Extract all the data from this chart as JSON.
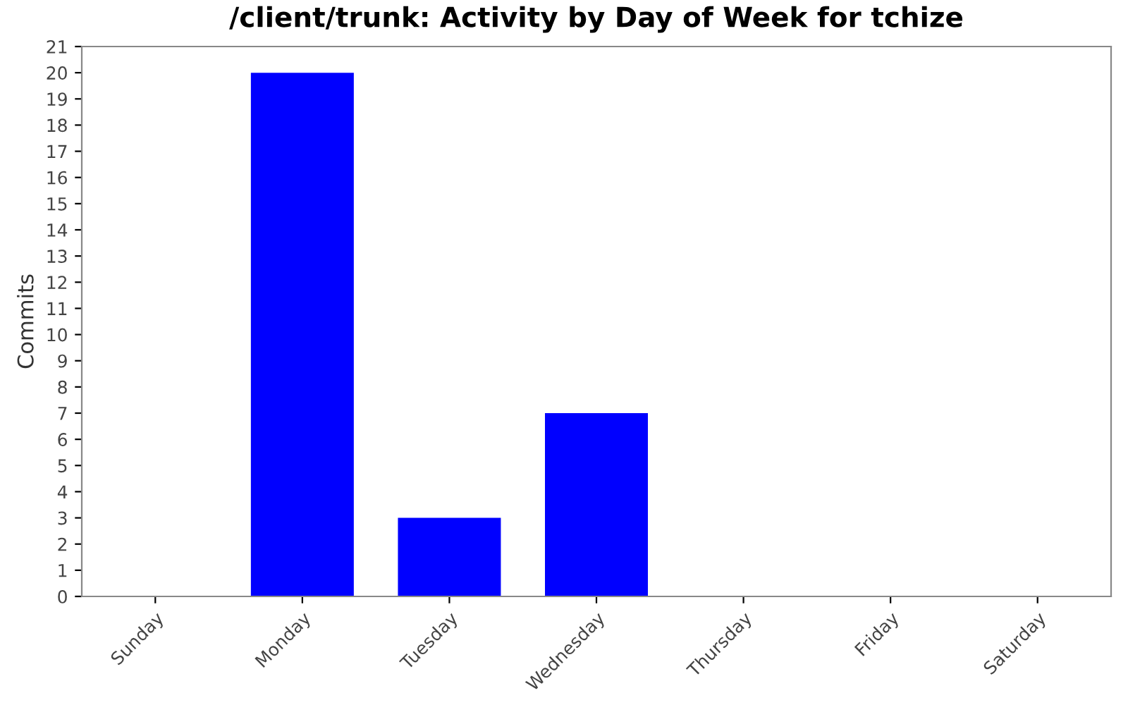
{
  "chart_data": {
    "type": "bar",
    "title": "/client/trunk: Activity by Day of Week for tchize",
    "ylabel": "Commits",
    "categories": [
      "Sunday",
      "Monday",
      "Tuesday",
      "Wednesday",
      "Thursday",
      "Friday",
      "Saturday"
    ],
    "values": [
      0,
      20,
      3,
      7,
      0,
      0,
      0
    ],
    "color": "#0000ff",
    "ylim": [
      0,
      21
    ],
    "yticks": [
      0,
      1,
      2,
      3,
      4,
      5,
      6,
      7,
      8,
      9,
      10,
      11,
      12,
      13,
      14,
      15,
      16,
      17,
      18,
      19,
      20,
      21
    ],
    "grid": false
  }
}
